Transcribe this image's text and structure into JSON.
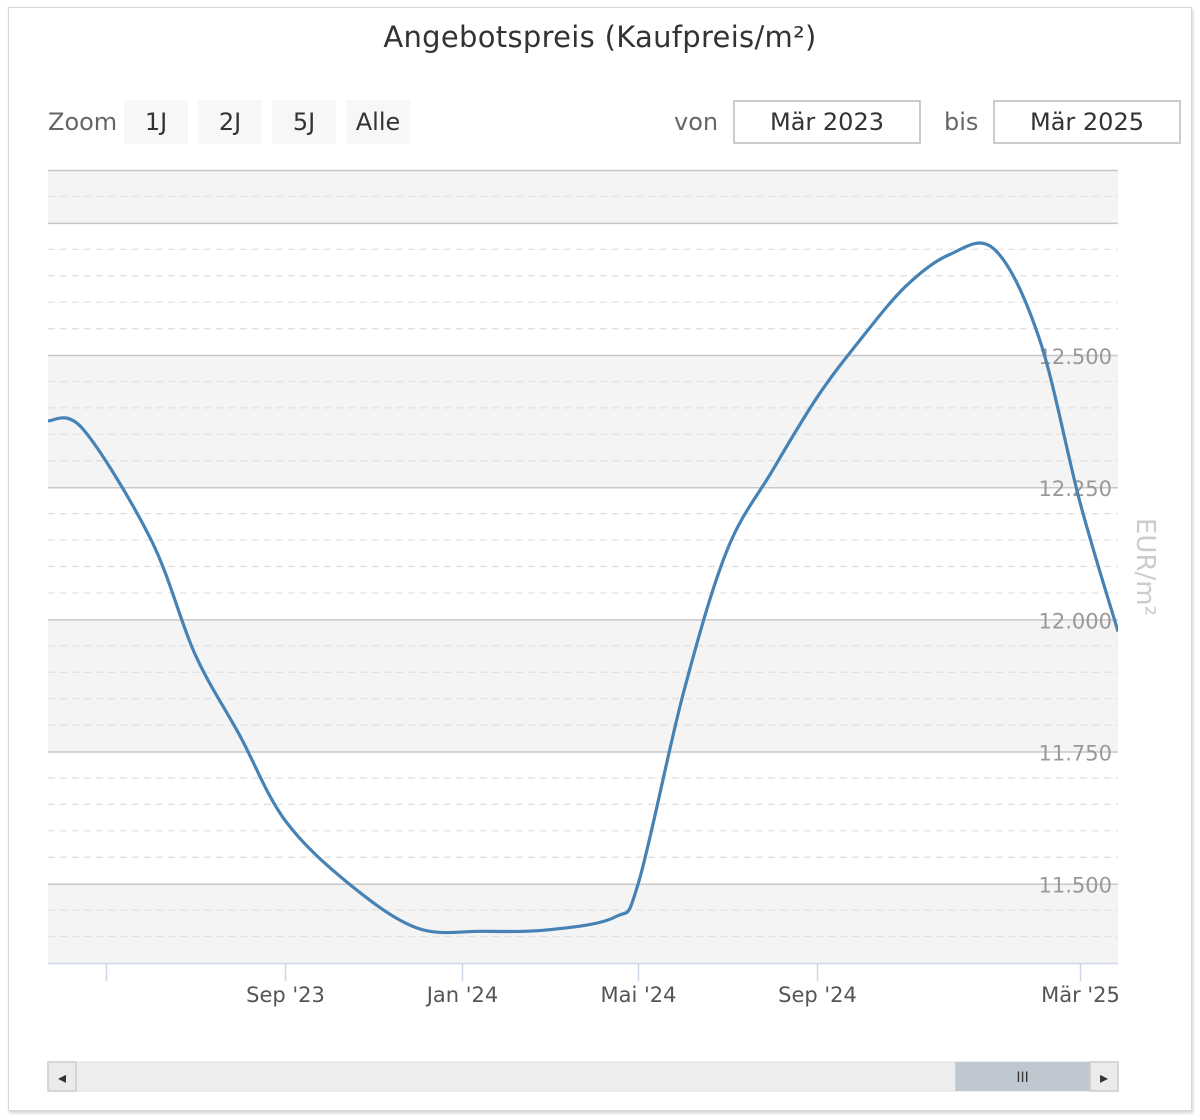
{
  "chart_data": {
    "type": "line",
    "title": "Angebotspreis (Kaufpreis/m²)",
    "ylabel": "EUR/m²",
    "ylim": [
      11350,
      12850
    ],
    "y_ticks": [
      {
        "value": 11500,
        "label": "11.500"
      },
      {
        "value": 11750,
        "label": "11.750"
      },
      {
        "value": 12000,
        "label": "12.000"
      },
      {
        "value": 12250,
        "label": "12.250"
      },
      {
        "value": 12500,
        "label": "12.500"
      }
    ],
    "x_range": [
      "2023-03-22",
      "2025-03-27"
    ],
    "x_ticks": [
      {
        "date": "2023-05-01",
        "label": ""
      },
      {
        "date": "2023-09-01",
        "label": "Sep '23"
      },
      {
        "date": "2024-01-01",
        "label": "Jan '24"
      },
      {
        "date": "2024-05-01",
        "label": "Mai '24"
      },
      {
        "date": "2024-09-01",
        "label": "Sep '24"
      },
      {
        "date": "2025-03-01",
        "label": "Mär '25"
      }
    ],
    "grid": true,
    "alternate_bands": true,
    "line_color": "#4682b4",
    "series": [
      {
        "points": [
          {
            "date": "2023-03-22",
            "value": 12376
          },
          {
            "date": "2023-04-15",
            "value": 12360
          },
          {
            "date": "2023-06-01",
            "value": 12150
          },
          {
            "date": "2023-07-01",
            "value": 11935
          },
          {
            "date": "2023-08-01",
            "value": 11780
          },
          {
            "date": "2023-09-01",
            "value": 11620
          },
          {
            "date": "2023-10-15",
            "value": 11500
          },
          {
            "date": "2023-12-01",
            "value": 11416
          },
          {
            "date": "2024-01-15",
            "value": 11410
          },
          {
            "date": "2024-03-01",
            "value": 11413
          },
          {
            "date": "2024-04-15",
            "value": 11437
          },
          {
            "date": "2024-05-01",
            "value": 11500
          },
          {
            "date": "2024-06-01",
            "value": 11860
          },
          {
            "date": "2024-07-01",
            "value": 12130
          },
          {
            "date": "2024-08-01",
            "value": 12280
          },
          {
            "date": "2024-09-01",
            "value": 12420
          },
          {
            "date": "2024-10-01",
            "value": 12530
          },
          {
            "date": "2024-11-01",
            "value": 12630
          },
          {
            "date": "2024-12-01",
            "value": 12690
          },
          {
            "date": "2025-01-01",
            "value": 12700
          },
          {
            "date": "2025-02-01",
            "value": 12530
          },
          {
            "date": "2025-03-01",
            "value": 12220
          },
          {
            "date": "2025-03-27",
            "value": 11977
          }
        ]
      }
    ]
  },
  "zoom": {
    "label": "Zoom",
    "buttons": [
      "1J",
      "2J",
      "5J",
      "Alle"
    ]
  },
  "range": {
    "from_label": "von",
    "from_value": "Mär 2023",
    "to_label": "bis",
    "to_value": "Mär 2025"
  },
  "navigator": {
    "window_start": "2024-12-05",
    "window_end": "2025-03-27",
    "grip_symbol": "III",
    "left_arrow": "◂",
    "right_arrow": "▸"
  },
  "colors": {
    "line": "#4682b4",
    "band": "#f4f4f4",
    "grid": "#e0e0e0",
    "tick_label": "#999999",
    "axis_title": "#cccccc"
  }
}
